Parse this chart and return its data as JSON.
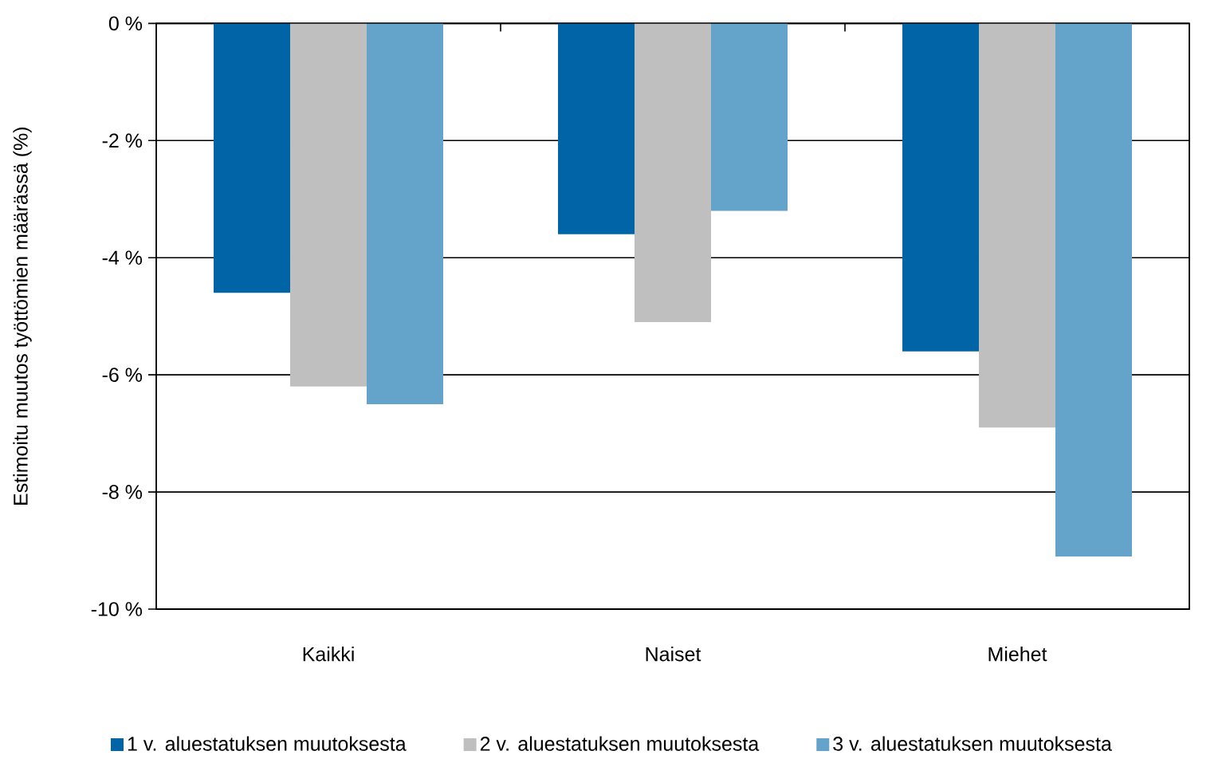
{
  "chart_data": {
    "type": "bar",
    "ylabel": "Estimoitu muutos työttömien määrässä (%)",
    "categories": [
      "Kaikki",
      "Naiset",
      "Miehet"
    ],
    "series": [
      {
        "name": "1 v. aluestatuksen muutoksesta",
        "color": "#0064a6",
        "values": [
          -4.6,
          -3.6,
          -5.6
        ]
      },
      {
        "name": "2 v. aluestatuksen muutoksesta",
        "color": "#bfbfbf",
        "values": [
          -6.2,
          -5.1,
          -6.9
        ]
      },
      {
        "name": "3 v. aluestatuksen muutoksesta",
        "color": "#64a4ca",
        "values": [
          -6.5,
          -3.2,
          -9.1
        ]
      }
    ],
    "ylim": [
      -10,
      0
    ],
    "yticks": [
      {
        "value": 0,
        "label": "0 %"
      },
      {
        "value": -2,
        "label": "-2 %"
      },
      {
        "value": -4,
        "label": "-4 %"
      },
      {
        "value": -6,
        "label": "-6 %"
      },
      {
        "value": -8,
        "label": "-8 %"
      },
      {
        "value": -10,
        "label": "-10 %"
      }
    ],
    "grid": "y",
    "legend": "bottom"
  }
}
